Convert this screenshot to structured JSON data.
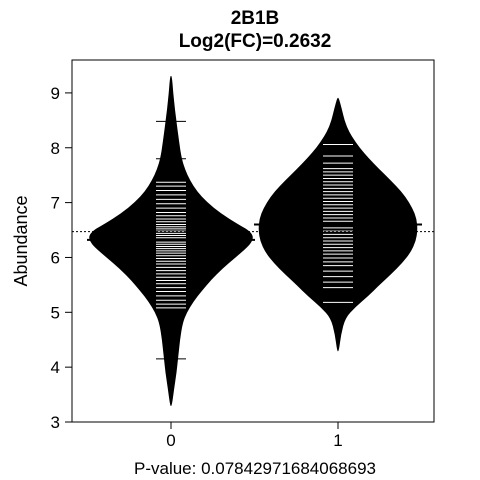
{
  "chart_data": {
    "type": "beanplot",
    "title": "2B1B",
    "subtitle": "Log2(FC)=0.2632",
    "xlabel": "P-value: 0.07842971684068693",
    "ylabel": "Abundance",
    "categories": [
      "0",
      "1"
    ],
    "y_ticks": [
      "3",
      "4",
      "5",
      "6",
      "7",
      "8",
      "9"
    ],
    "ylim": [
      3,
      9.6
    ],
    "overall_mean": 6.47,
    "grid": false,
    "legend": "none",
    "groups": [
      {
        "name": "0",
        "mean": 6.32,
        "density": [
          [
            3.3,
            0.005
          ],
          [
            3.6,
            0.03
          ],
          [
            3.9,
            0.06
          ],
          [
            4.2,
            0.08
          ],
          [
            4.5,
            0.1
          ],
          [
            4.8,
            0.13
          ],
          [
            5.0,
            0.18
          ],
          [
            5.2,
            0.26
          ],
          [
            5.4,
            0.36
          ],
          [
            5.6,
            0.47
          ],
          [
            5.8,
            0.6
          ],
          [
            6.0,
            0.75
          ],
          [
            6.2,
            0.9
          ],
          [
            6.3,
            0.95
          ],
          [
            6.4,
            0.96
          ],
          [
            6.5,
            0.9
          ],
          [
            6.6,
            0.78
          ],
          [
            6.8,
            0.58
          ],
          [
            7.0,
            0.42
          ],
          [
            7.2,
            0.3
          ],
          [
            7.4,
            0.22
          ],
          [
            7.6,
            0.16
          ],
          [
            7.8,
            0.12
          ],
          [
            8.1,
            0.09
          ],
          [
            8.4,
            0.065
          ],
          [
            8.7,
            0.04
          ],
          [
            9.0,
            0.02
          ],
          [
            9.3,
            0.005
          ]
        ],
        "observations": [
          4.15,
          5.08,
          5.15,
          5.22,
          5.3,
          5.38,
          5.45,
          5.52,
          5.58,
          5.64,
          5.7,
          5.76,
          5.82,
          5.88,
          5.93,
          5.98,
          6.03,
          6.08,
          6.12,
          6.16,
          6.2,
          6.24,
          6.28,
          6.32,
          6.36,
          6.4,
          6.44,
          6.48,
          6.52,
          6.56,
          6.6,
          6.65,
          6.7,
          6.76,
          6.82,
          6.9,
          6.98,
          7.06,
          7.14,
          7.22,
          7.3,
          7.37,
          7.8,
          8.48
        ]
      },
      {
        "name": "1",
        "mean": 6.6,
        "density": [
          [
            4.3,
            0.005
          ],
          [
            4.6,
            0.03
          ],
          [
            4.9,
            0.08
          ],
          [
            5.1,
            0.2
          ],
          [
            5.3,
            0.35
          ],
          [
            5.5,
            0.48
          ],
          [
            5.7,
            0.62
          ],
          [
            5.9,
            0.75
          ],
          [
            6.1,
            0.85
          ],
          [
            6.3,
            0.91
          ],
          [
            6.5,
            0.93
          ],
          [
            6.7,
            0.92
          ],
          [
            6.9,
            0.87
          ],
          [
            7.1,
            0.79
          ],
          [
            7.3,
            0.68
          ],
          [
            7.5,
            0.55
          ],
          [
            7.7,
            0.42
          ],
          [
            7.9,
            0.3
          ],
          [
            8.1,
            0.2
          ],
          [
            8.3,
            0.12
          ],
          [
            8.5,
            0.07
          ],
          [
            8.7,
            0.04
          ],
          [
            8.9,
            0.005
          ]
        ],
        "observations": [
          5.18,
          5.45,
          5.55,
          5.65,
          5.75,
          5.85,
          5.92,
          5.99,
          6.06,
          6.12,
          6.18,
          6.24,
          6.3,
          6.36,
          6.42,
          6.48,
          6.54,
          6.6,
          6.66,
          6.72,
          6.78,
          6.84,
          6.9,
          6.96,
          7.02,
          7.08,
          7.14,
          7.2,
          7.26,
          7.32,
          7.38,
          7.44,
          7.5,
          7.56,
          7.62,
          7.72,
          7.85,
          8.06
        ]
      }
    ],
    "colors": {
      "bean_fill": "#000000",
      "observation_line": "#ffffff",
      "axis": "#000000",
      "background": "#ffffff"
    }
  }
}
